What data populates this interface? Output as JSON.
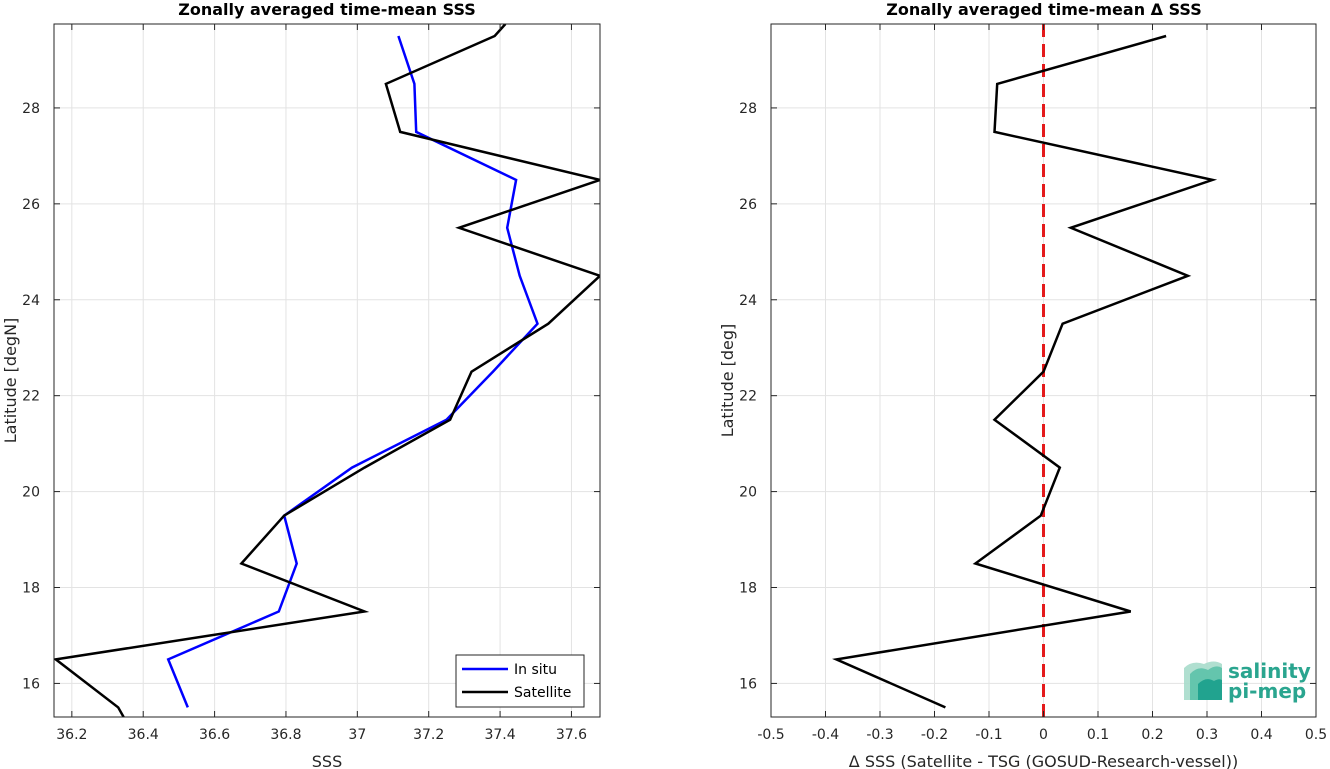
{
  "chart_data": [
    {
      "type": "line",
      "title": "Zonally averaged time-mean SSS",
      "xlabel": "SSS",
      "ylabel": "Latitude [degN]",
      "xlim": [
        36.15,
        37.68
      ],
      "ylim": [
        15.3,
        29.75
      ],
      "xticks": [
        36.2,
        36.4,
        36.6,
        36.8,
        37,
        37.2,
        37.4,
        37.6
      ],
      "xtick_labels": [
        "36.2",
        "36.4",
        "36.6",
        "36.8",
        "37",
        "37.2",
        "37.4",
        "37.6"
      ],
      "yticks": [
        16,
        18,
        20,
        22,
        24,
        26,
        28
      ],
      "ytick_labels": [
        "16",
        "18",
        "20",
        "22",
        "24",
        "26",
        "28"
      ],
      "grid": true,
      "legend": "bottom-right",
      "series": [
        {
          "name": "In situ",
          "color": "#0000ff",
          "x": [
            36.525,
            36.47,
            36.78,
            36.83,
            36.795,
            36.985,
            37.25,
            37.38,
            37.505,
            37.455,
            37.42,
            37.445,
            37.165,
            37.16,
            37.115
          ],
          "y": [
            15.5,
            16.5,
            17.5,
            18.5,
            19.5,
            20.5,
            21.5,
            22.5,
            23.5,
            24.5,
            25.5,
            26.5,
            27.5,
            28.5,
            29.5
          ]
        },
        {
          "name": "Satellite",
          "color": "#000000",
          "x": [
            36.345,
            36.33,
            36.155,
            37.02,
            36.675,
            36.795,
            37.02,
            37.26,
            37.32,
            37.535,
            37.68,
            37.285,
            37.68,
            37.12,
            37.08,
            37.385,
            37.415
          ],
          "y": [
            15.3,
            15.5,
            16.5,
            17.5,
            18.5,
            19.5,
            20.5,
            21.5,
            22.5,
            23.5,
            24.5,
            25.5,
            26.5,
            27.5,
            28.5,
            29.5,
            29.75
          ]
        }
      ]
    },
    {
      "type": "line",
      "title": "Zonally averaged time-mean Δ SSS",
      "xlabel": "Δ SSS (Satellite - TSG (GOSUD-Research-vessel))",
      "ylabel": "Latitude [deg]",
      "xlim": [
        -0.5,
        0.5
      ],
      "ylim": [
        15.3,
        29.75
      ],
      "xticks": [
        -0.5,
        -0.4,
        -0.3,
        -0.2,
        -0.1,
        0,
        0.1,
        0.2,
        0.3,
        0.4,
        0.5
      ],
      "xtick_labels": [
        "-0.5",
        "-0.4",
        "-0.3",
        "-0.2",
        "-0.1",
        "0",
        "0.1",
        "0.2",
        "0.3",
        "0.4",
        "0.5"
      ],
      "yticks": [
        16,
        18,
        20,
        22,
        24,
        26,
        28
      ],
      "ytick_labels": [
        "16",
        "18",
        "20",
        "22",
        "24",
        "26",
        "28"
      ],
      "grid": true,
      "reference_line": {
        "x": 0,
        "color": "#e41a1c",
        "style": "dashed"
      },
      "series": [
        {
          "color": "#000000",
          "x": [
            -0.18,
            -0.38,
            0.16,
            -0.125,
            -0.005,
            0.03,
            -0.09,
            0.0,
            0.035,
            0.265,
            0.05,
            0.31,
            -0.09,
            -0.085,
            0.225
          ],
          "y": [
            15.5,
            16.5,
            17.5,
            18.5,
            19.5,
            20.5,
            21.5,
            22.5,
            23.5,
            24.5,
            25.5,
            26.5,
            27.5,
            28.5,
            29.5
          ]
        }
      ]
    }
  ],
  "logo": {
    "line1": "salinity",
    "line2": "pi-mep",
    "colors": [
      "#1a9e8c",
      "#5cc2a8",
      "#a7dccb"
    ]
  }
}
